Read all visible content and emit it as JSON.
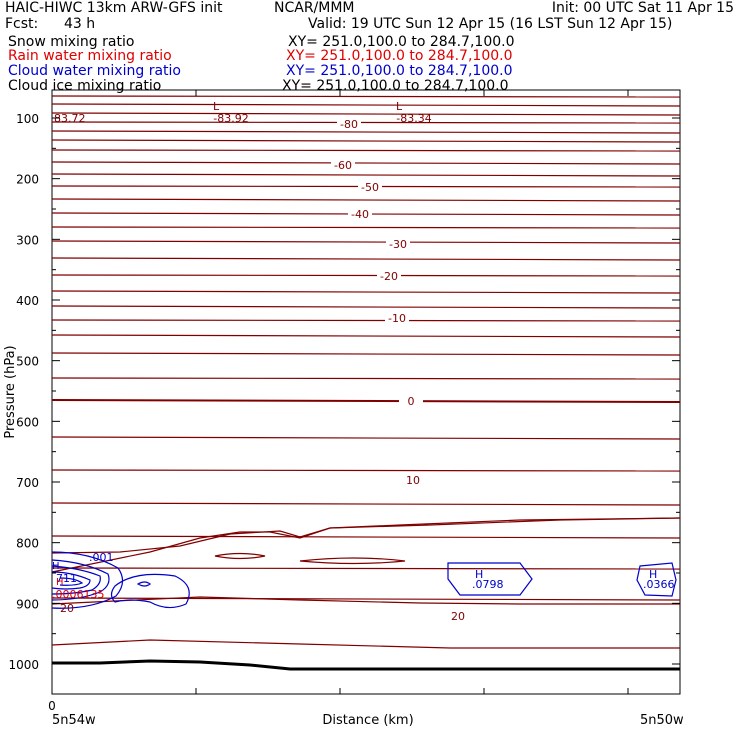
{
  "header": {
    "title_left": "HAIC-HIWC 13km ARW-GFS init",
    "title_center": "NCAR/MMM",
    "init": "Init: 00 UTC Sat 11 Apr 15",
    "fcst_label": "Fcst:",
    "fcst_value": "43 h",
    "valid": "Valid: 19 UTC Sun 12 Apr 15 (16 LST Sun 12 Apr 15)"
  },
  "fields": [
    {
      "name": "Snow mixing ratio",
      "xy": "XY= 251.0,100.0 to 284.7,100.0",
      "color": "#000000"
    },
    {
      "name": "Rain water mixing ratio",
      "xy": "XY= 251.0,100.0 to 284.7,100.0",
      "color": "#e00000"
    },
    {
      "name": "Cloud water mixing ratio",
      "xy": "XY= 251.0,100.0 to 284.7,100.0",
      "color": "#0000cc"
    },
    {
      "name": "Cloud ice mixing ratio",
      "xy": "XY= 251.0,100.0 to 284.7,100.0",
      "color": "#000000"
    }
  ],
  "chart_data": {
    "type": "contour",
    "ylabel": "Pressure (hPa)",
    "xlabel": "Distance (km)",
    "y_ticks": [
      100,
      200,
      300,
      400,
      500,
      600,
      700,
      800,
      900,
      1000
    ],
    "x_tick_label": "0",
    "x_left_label": "5n54w",
    "x_right_label": "5n50w",
    "temperature_labels": [
      "-80",
      "-60",
      "-50",
      "-40",
      "-30",
      "-20",
      "-10",
      "0",
      "10",
      "20"
    ],
    "extrema": [
      {
        "kind": "L",
        "value": "-83.92"
      },
      {
        "kind": "L",
        "value": "-83.34"
      },
      {
        "kind": "edge",
        "value": "83.72"
      }
    ],
    "cloud_water": {
      "labels": [
        ".001",
        "711"
      ],
      "highs": [
        {
          "label": "H",
          "value": ".0798"
        },
        {
          "label": "H",
          "value": ".0366"
        }
      ]
    },
    "rain_water": {
      "label": "H",
      "value": ".0006135"
    },
    "colors": {
      "temperature": "#800000",
      "cloud_water": "#0000cc",
      "rain": "#e00000",
      "terrain": "#000000"
    }
  }
}
